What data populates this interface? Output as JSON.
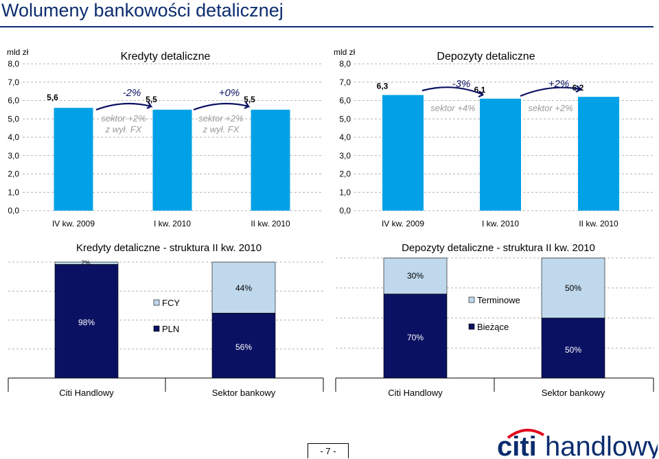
{
  "slide": {
    "title": "Wolumeny bankowości detalicznej",
    "page_number": "- 7 -"
  },
  "colors": {
    "blue": "#00a1e6",
    "navy": "#0b1162",
    "light_blue": "#bfd8ec",
    "title_navy": "#0b2c6e",
    "brand_red": "#e2001a"
  },
  "chart_data": [
    {
      "type": "bar",
      "title": "Kredyty detaliczne",
      "unit": "mld zł",
      "categories": [
        "IV kw. 2009",
        "I kw. 2010",
        "II kw. 2010"
      ],
      "values": [
        5.6,
        5.5,
        5.5
      ],
      "value_labels": [
        "5,6",
        "5,5",
        "5,5"
      ],
      "ylim": [
        0,
        8
      ],
      "yticks": [
        "0,0",
        "1,0",
        "2,0",
        "3,0",
        "4,0",
        "5,0",
        "6,0",
        "7,0",
        "8,0"
      ],
      "grid": true,
      "annotations": [
        {
          "change": "-2%",
          "sector_line1": "sektor +2%",
          "sector_line2": "z wył. FX"
        },
        {
          "change": "+0%",
          "sector_line1": "sektor +2%",
          "sector_line2": "z wył. FX"
        }
      ]
    },
    {
      "type": "bar",
      "title": "Depozyty detaliczne",
      "unit": "mld zł",
      "categories": [
        "IV kw. 2009",
        "I kw. 2010",
        "II kw. 2010"
      ],
      "values": [
        6.3,
        6.1,
        6.2
      ],
      "value_labels": [
        "6,3",
        "6,1",
        "6,2"
      ],
      "ylim": [
        0,
        8
      ],
      "yticks": [
        "0,0",
        "1,0",
        "2,0",
        "3,0",
        "4,0",
        "5,0",
        "6,0",
        "7,0",
        "8,0"
      ],
      "grid": true,
      "annotations": [
        {
          "change": "-3%",
          "sector_line1": "sektor +4%"
        },
        {
          "change": "+2%",
          "sector_line1": "sektor +2%"
        }
      ]
    },
    {
      "type": "bar",
      "stacked": true,
      "percent": true,
      "title": "Kredyty detaliczne - struktura II kw. 2010",
      "categories": [
        "Citi Handlowy",
        "Sektor bankowy"
      ],
      "series": [
        {
          "name": "PLN",
          "values": [
            98,
            56
          ],
          "labels": [
            "98%",
            "56%"
          ]
        },
        {
          "name": "FCY",
          "values": [
            2,
            44
          ],
          "labels": [
            "2%",
            "44%"
          ]
        }
      ],
      "legend_placement": "center"
    },
    {
      "type": "bar",
      "stacked": true,
      "percent": true,
      "title": "Depozyty detaliczne - struktura II kw. 2010",
      "categories": [
        "Citi Handlowy",
        "Sektor bankowy"
      ],
      "series": [
        {
          "name": "Bieżące",
          "values": [
            70,
            50
          ],
          "labels": [
            "70%",
            "50%"
          ]
        },
        {
          "name": "Terminowe",
          "values": [
            30,
            50
          ],
          "labels": [
            "30%",
            "50%"
          ]
        }
      ],
      "legend_placement": "center"
    }
  ],
  "logo": {
    "citi": "citi",
    "handlowy": "handlowy"
  }
}
